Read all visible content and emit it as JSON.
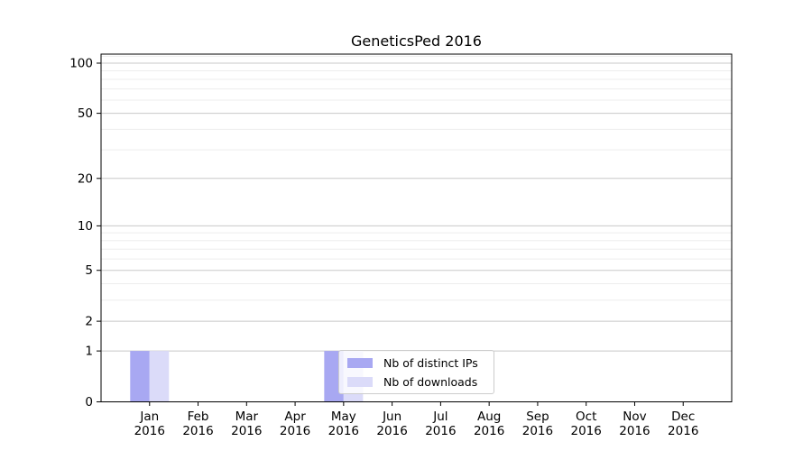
{
  "chart_data": {
    "type": "bar",
    "title": "GeneticsPed 2016",
    "categories": [
      "Jan",
      "Feb",
      "Mar",
      "Apr",
      "May",
      "Jun",
      "Jul",
      "Aug",
      "Sep",
      "Oct",
      "Nov",
      "Dec"
    ],
    "category_year": "2016",
    "series": [
      {
        "name": "Nb of distinct IPs",
        "color": "#a8a8f2",
        "values": [
          1,
          0,
          0,
          0,
          1,
          0,
          0,
          0,
          0,
          0,
          0,
          0
        ]
      },
      {
        "name": "Nb of downloads",
        "color": "#dbdbf9",
        "values": [
          1,
          0,
          0,
          0,
          1,
          0,
          0,
          0,
          0,
          0,
          0,
          0
        ]
      }
    ],
    "yticks": [
      0,
      1,
      2,
      5,
      10,
      20,
      50,
      100
    ],
    "minor_gridline_values": [
      3,
      4,
      6,
      7,
      8,
      9,
      30,
      40,
      60,
      70,
      80,
      90,
      110
    ],
    "yscale": "log10(1+v)",
    "ylim": [
      0,
      113
    ],
    "grid": true,
    "legend_position": "lower center-right",
    "colors": {
      "axis": "#000000",
      "major_grid": "#c8c8c8",
      "minor_grid": "#ededed",
      "legend_border": "#cccccc"
    }
  }
}
